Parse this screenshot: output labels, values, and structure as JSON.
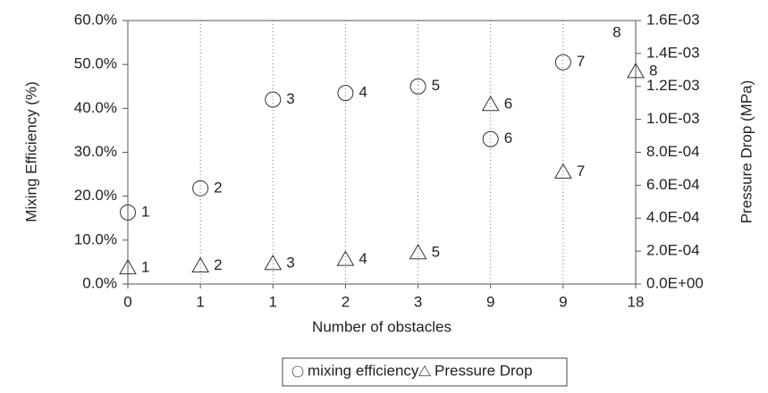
{
  "chart_data": {
    "type": "scatter",
    "x_label": "Number of obstacles",
    "y_label": "Mixing Efficiency (%)",
    "y2_label": "Pressure Drop (MPa)",
    "categories": [
      "0",
      "1",
      "1",
      "2",
      "3",
      "9",
      "9",
      "18"
    ],
    "series": [
      {
        "name": "mixing efficiency",
        "color": "#333333",
        "marker": "circle",
        "values": [
          16.3,
          21.8,
          42.0,
          43.5,
          45.0,
          33.0,
          50.5,
          null
        ],
        "point_labels": [
          "1",
          "2",
          "3",
          "4",
          "5",
          "6",
          "7",
          "8"
        ]
      },
      {
        "name": "Pressure Drop",
        "color": "#333333",
        "marker": "triangle",
        "axis": "y2",
        "values": [
          9.8e-05,
          0.00011,
          0.000125,
          0.00015,
          0.00019,
          0.00109,
          0.00068,
          0.00129
        ],
        "point_labels": [
          "1",
          "2",
          "3",
          "4",
          "5",
          "6",
          "7",
          "8"
        ]
      }
    ],
    "ylim": [
      0,
      60
    ],
    "yticks": [
      {
        "value": 0,
        "label": "0.0%"
      },
      {
        "value": 10,
        "label": "10.0%"
      },
      {
        "value": 20,
        "label": "20.0%"
      },
      {
        "value": 30,
        "label": "30.0%"
      },
      {
        "value": 40,
        "label": "40.0%"
      },
      {
        "value": 50,
        "label": "50.0%"
      },
      {
        "value": 60,
        "label": "60.0%"
      }
    ],
    "y2lim": [
      0,
      0.0016
    ],
    "y2ticks": [
      {
        "value": 0,
        "label": "0.0E+00"
      },
      {
        "value": 0.0002,
        "label": "2.0E-04"
      },
      {
        "value": 0.0004,
        "label": "4.0E-04"
      },
      {
        "value": 0.0006,
        "label": "6.0E-04"
      },
      {
        "value": 0.0008,
        "label": "8.0E-04"
      },
      {
        "value": 0.001,
        "label": "1.0E-03"
      },
      {
        "value": 0.0012,
        "label": "1.2E-03"
      },
      {
        "value": 0.0014,
        "label": "1.4E-03"
      },
      {
        "value": 0.0016,
        "label": "1.6E-03"
      }
    ],
    "grid": "x",
    "legend": "bottom"
  }
}
